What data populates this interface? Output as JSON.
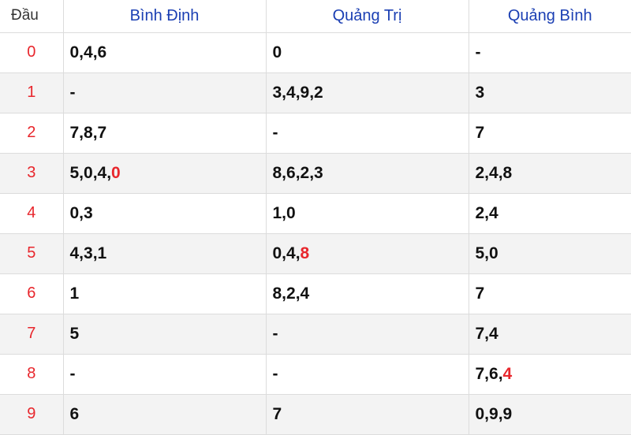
{
  "columns": [
    "Đầu",
    "Bình Định",
    "Quảng Trị",
    "Quảng Bình"
  ],
  "highlight_color": "#e8262c",
  "rows": [
    {
      "dau": "0",
      "cells": [
        {
          "text": "0,4,6",
          "hl": ""
        },
        {
          "text": "0",
          "hl": ""
        },
        {
          "text": "-",
          "hl": ""
        }
      ]
    },
    {
      "dau": "1",
      "cells": [
        {
          "text": "-",
          "hl": ""
        },
        {
          "text": "3,4,9,2",
          "hl": ""
        },
        {
          "text": "3",
          "hl": ""
        }
      ]
    },
    {
      "dau": "2",
      "cells": [
        {
          "text": "7,8,7",
          "hl": ""
        },
        {
          "text": "-",
          "hl": ""
        },
        {
          "text": "7",
          "hl": ""
        }
      ]
    },
    {
      "dau": "3",
      "cells": [
        {
          "text": "5,0,4,",
          "hl": "0"
        },
        {
          "text": "8,6,2,3",
          "hl": ""
        },
        {
          "text": "2,4,8",
          "hl": ""
        }
      ]
    },
    {
      "dau": "4",
      "cells": [
        {
          "text": "0,3",
          "hl": ""
        },
        {
          "text": "1,0",
          "hl": ""
        },
        {
          "text": "2,4",
          "hl": ""
        }
      ]
    },
    {
      "dau": "5",
      "cells": [
        {
          "text": "4,3,1",
          "hl": ""
        },
        {
          "text": "0,4,",
          "hl": "8"
        },
        {
          "text": "5,0",
          "hl": ""
        }
      ]
    },
    {
      "dau": "6",
      "cells": [
        {
          "text": "1",
          "hl": ""
        },
        {
          "text": "8,2,4",
          "hl": ""
        },
        {
          "text": "7",
          "hl": ""
        }
      ]
    },
    {
      "dau": "7",
      "cells": [
        {
          "text": "5",
          "hl": ""
        },
        {
          "text": "-",
          "hl": ""
        },
        {
          "text": "7,4",
          "hl": ""
        }
      ]
    },
    {
      "dau": "8",
      "cells": [
        {
          "text": "-",
          "hl": ""
        },
        {
          "text": "-",
          "hl": ""
        },
        {
          "text": "7,6,",
          "hl": "4"
        }
      ]
    },
    {
      "dau": "9",
      "cells": [
        {
          "text": "6",
          "hl": ""
        },
        {
          "text": "7",
          "hl": ""
        },
        {
          "text": "0,9,9",
          "hl": ""
        }
      ]
    }
  ]
}
